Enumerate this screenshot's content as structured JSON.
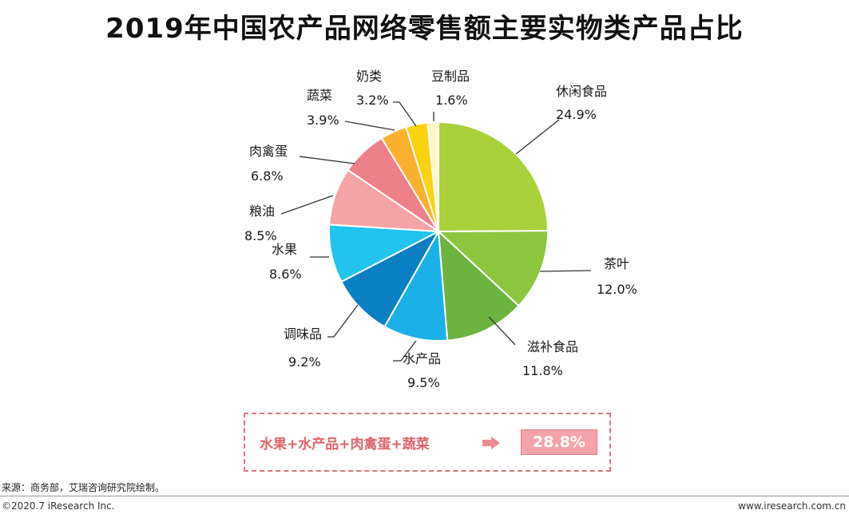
{
  "title": "2019年中国农产品网络零售额主要实物类产品占比",
  "chart_data": {
    "type": "pie",
    "title": "2019年中国农产品网络零售额主要实物类产品占比",
    "unit": "%",
    "slices": [
      {
        "label": "休闲食品",
        "value": 24.9,
        "value_label": "24.9%",
        "color": "#a9d13c"
      },
      {
        "label": "茶叶",
        "value": 12.0,
        "value_label": "12.0%",
        "color": "#8cc63f"
      },
      {
        "label": "滋补食品",
        "value": 11.8,
        "value_label": "11.8%",
        "color": "#6db33f"
      },
      {
        "label": "水产品",
        "value": 9.5,
        "value_label": "9.5%",
        "color": "#1cb0e8"
      },
      {
        "label": "调味品",
        "value": 9.2,
        "value_label": "9.2%",
        "color": "#0a7fc4"
      },
      {
        "label": "水果",
        "value": 8.6,
        "value_label": "8.6%",
        "color": "#22c3ee"
      },
      {
        "label": "粮油",
        "value": 8.5,
        "value_label": "8.5%",
        "color": "#f4a4a6"
      },
      {
        "label": "肉禽蛋",
        "value": 6.8,
        "value_label": "6.8%",
        "color": "#ee8089"
      },
      {
        "label": "蔬菜",
        "value": 3.9,
        "value_label": "3.9%",
        "color": "#fbb12f"
      },
      {
        "label": "奶类",
        "value": 3.2,
        "value_label": "3.2%",
        "color": "#fcd20f"
      },
      {
        "label": "豆制品",
        "value": 1.6,
        "value_label": "1.6%",
        "color": "#fff5c9"
      }
    ]
  },
  "summary": {
    "text": "水果+水产品+肉禽蛋+蔬菜",
    "value": "28.8%"
  },
  "footer": {
    "source": "来源：商务部，艾瑞咨询研究院绘制。",
    "copyright": "©2020.7 iResearch Inc.",
    "website": "www.iresearch.com.cn"
  }
}
